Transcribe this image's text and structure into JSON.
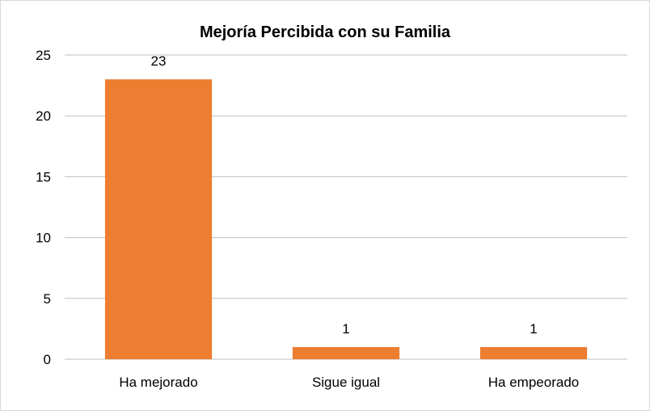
{
  "chart_data": {
    "type": "bar",
    "title": "Mejoría Percibida con su Familia",
    "categories": [
      "Ha mejorado",
      "Sigue igual",
      "Ha empeorado"
    ],
    "values": [
      23,
      1,
      1
    ],
    "data_labels": [
      "23",
      "1",
      "1"
    ],
    "yticks": [
      "0",
      "5",
      "10",
      "15",
      "20",
      "25"
    ],
    "ylim": [
      0,
      25
    ],
    "xlabel": "",
    "ylabel": "",
    "grid": true,
    "legend": "none",
    "bar_color": "#ED7D31",
    "grid_color": "#BFBFBF"
  }
}
